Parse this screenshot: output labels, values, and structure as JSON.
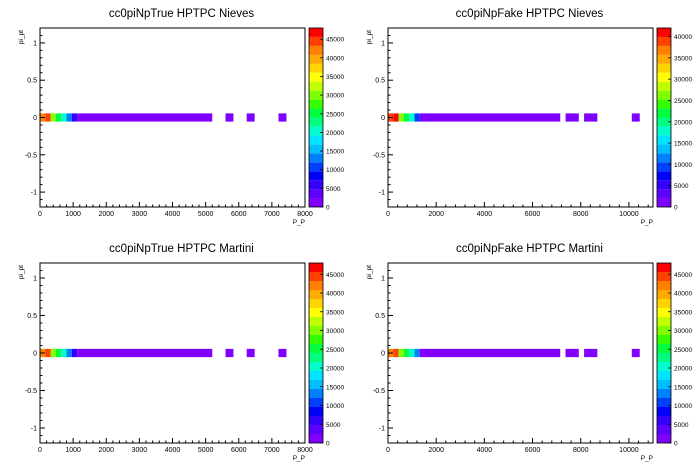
{
  "chart_data": [
    {
      "type": "heatmap",
      "title": "cc0piNpTrue HPTPC Nieves",
      "xlabel": "P_P",
      "ylabel": "pi_pt",
      "xlim": [
        0,
        8000
      ],
      "ylim": [
        -1.2,
        1.2
      ],
      "x_ticks": [
        "0",
        "1000",
        "2000",
        "3000",
        "4000",
        "5000",
        "6000",
        "7000",
        "8000"
      ],
      "y_ticks": [
        "-1",
        "-0.5",
        "0",
        "0.5",
        "1"
      ],
      "z_ticks": [
        "0",
        "5000",
        "10000",
        "15000",
        "20000",
        "25000",
        "30000",
        "35000",
        "40000",
        "45000"
      ],
      "zmax": 48000,
      "bins": [
        {
          "x0": 0,
          "x1": 160,
          "value": 42000
        },
        {
          "x0": 160,
          "x1": 320,
          "value": 45000
        },
        {
          "x0": 320,
          "x1": 480,
          "value": 30000
        },
        {
          "x0": 480,
          "x1": 640,
          "value": 25000
        },
        {
          "x0": 640,
          "x1": 800,
          "value": 21000
        },
        {
          "x0": 800,
          "x1": 960,
          "value": 13000
        },
        {
          "x0": 960,
          "x1": 1120,
          "value": 6000
        },
        {
          "x0": 1120,
          "x1": 5200,
          "value": 2000
        },
        {
          "x0": 5600,
          "x1": 5840,
          "value": 800
        },
        {
          "x0": 6240,
          "x1": 6480,
          "value": 500
        },
        {
          "x0": 7200,
          "x1": 7440,
          "value": 300
        }
      ]
    },
    {
      "type": "heatmap",
      "title": "cc0piNpFake HPTPC Nieves",
      "xlabel": "P_P",
      "ylabel": "pi_pt",
      "xlim": [
        0,
        11000
      ],
      "ylim": [
        -1.2,
        1.2
      ],
      "x_ticks": [
        "0",
        "2000",
        "4000",
        "6000",
        "8000",
        "10000"
      ],
      "y_ticks": [
        "-1",
        "-0.5",
        "0",
        "0.5",
        "1"
      ],
      "z_ticks": [
        "0",
        "5000",
        "10000",
        "15000",
        "20000",
        "25000",
        "30000",
        "35000",
        "40000"
      ],
      "zmax": 42000,
      "bins": [
        {
          "x0": 0,
          "x1": 220,
          "value": 38000
        },
        {
          "x0": 220,
          "x1": 440,
          "value": 41000
        },
        {
          "x0": 440,
          "x1": 660,
          "value": 26000
        },
        {
          "x0": 660,
          "x1": 880,
          "value": 22000
        },
        {
          "x0": 880,
          "x1": 1100,
          "value": 18000
        },
        {
          "x0": 1100,
          "x1": 1320,
          "value": 10000
        },
        {
          "x0": 1320,
          "x1": 7150,
          "value": 2000
        },
        {
          "x0": 7370,
          "x1": 7920,
          "value": 900
        },
        {
          "x0": 8140,
          "x1": 8690,
          "value": 600
        },
        {
          "x0": 10120,
          "x1": 10450,
          "value": 300
        }
      ]
    },
    {
      "type": "heatmap",
      "title": "cc0piNpTrue HPTPC Martini",
      "xlabel": "P_P",
      "ylabel": "pi_pt",
      "xlim": [
        0,
        8000
      ],
      "ylim": [
        -1.2,
        1.2
      ],
      "x_ticks": [
        "0",
        "1000",
        "2000",
        "3000",
        "4000",
        "5000",
        "6000",
        "7000",
        "8000"
      ],
      "y_ticks": [
        "-1",
        "-0.5",
        "0",
        "0.5",
        "1"
      ],
      "z_ticks": [
        "0",
        "5000",
        "10000",
        "15000",
        "20000",
        "25000",
        "30000",
        "35000",
        "40000",
        "45000"
      ],
      "zmax": 48000,
      "bins": [
        {
          "x0": 0,
          "x1": 160,
          "value": 42000
        },
        {
          "x0": 160,
          "x1": 320,
          "value": 45000
        },
        {
          "x0": 320,
          "x1": 480,
          "value": 30000
        },
        {
          "x0": 480,
          "x1": 640,
          "value": 25000
        },
        {
          "x0": 640,
          "x1": 800,
          "value": 21000
        },
        {
          "x0": 800,
          "x1": 960,
          "value": 13000
        },
        {
          "x0": 960,
          "x1": 1120,
          "value": 6000
        },
        {
          "x0": 1120,
          "x1": 5200,
          "value": 2000
        },
        {
          "x0": 5600,
          "x1": 5840,
          "value": 800
        },
        {
          "x0": 6240,
          "x1": 6480,
          "value": 500
        },
        {
          "x0": 7200,
          "x1": 7440,
          "value": 300
        }
      ]
    },
    {
      "type": "heatmap",
      "title": "cc0piNpFake HPTPC Martini",
      "xlabel": "P_P",
      "ylabel": "pi_pt",
      "xlim": [
        0,
        11000
      ],
      "ylim": [
        -1.2,
        1.2
      ],
      "x_ticks": [
        "0",
        "2000",
        "4000",
        "6000",
        "8000",
        "10000"
      ],
      "y_ticks": [
        "-1",
        "-0.5",
        "0",
        "0.5",
        "1"
      ],
      "z_ticks": [
        "0",
        "5000",
        "10000",
        "15000",
        "20000",
        "25000",
        "30000",
        "35000",
        "40000",
        "45000"
      ],
      "zmax": 48000,
      "bins": [
        {
          "x0": 0,
          "x1": 220,
          "value": 42000
        },
        {
          "x0": 220,
          "x1": 440,
          "value": 45000
        },
        {
          "x0": 440,
          "x1": 660,
          "value": 30000
        },
        {
          "x0": 660,
          "x1": 880,
          "value": 25000
        },
        {
          "x0": 880,
          "x1": 1100,
          "value": 20000
        },
        {
          "x0": 1100,
          "x1": 1320,
          "value": 12000
        },
        {
          "x0": 1320,
          "x1": 7150,
          "value": 2000
        },
        {
          "x0": 7370,
          "x1": 7920,
          "value": 900
        },
        {
          "x0": 8140,
          "x1": 8690,
          "value": 600
        },
        {
          "x0": 10120,
          "x1": 10450,
          "value": 300
        }
      ]
    }
  ]
}
